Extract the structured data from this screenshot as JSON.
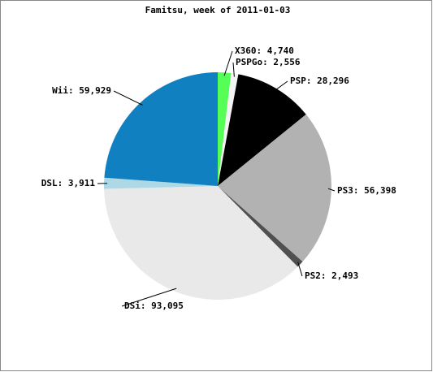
{
  "chart_data": {
    "type": "pie",
    "title": "Famitsu, week of 2011-01-03",
    "values": [
      4740,
      2556,
      28296,
      56398,
      2493,
      93095,
      3911,
      59929
    ],
    "value_labels": [
      "X360: 4,740",
      "PSPGo: 2,556",
      "PSP: 28,296",
      "PS3: 56,398",
      "PS2: 2,493",
      "DSi: 93,095",
      "DSL: 3,911",
      "Wii: 59,929"
    ],
    "colors": [
      "#55ff55",
      "#f4f4f4",
      "#000000",
      "#b2b2b2",
      "#505050",
      "#e9e9e9",
      "#add8e6",
      "#1080c0"
    ]
  }
}
